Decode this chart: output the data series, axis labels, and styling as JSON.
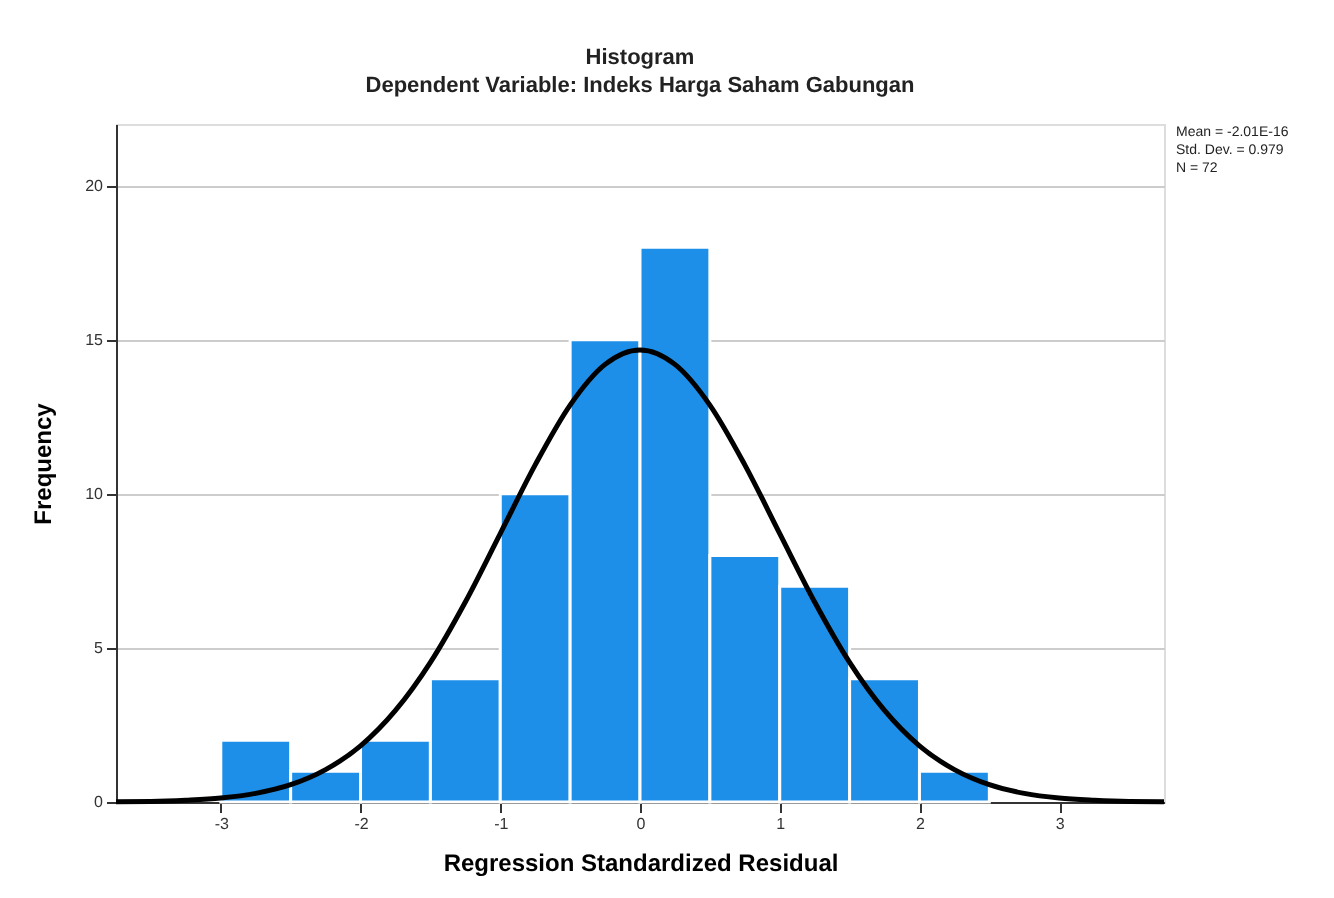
{
  "chart_data": {
    "type": "histogram",
    "title": "Histogram",
    "subtitle": "Dependent Variable: Indeks Harga Saham Gabungan",
    "xlabel": "Regression Standardized Residual",
    "ylabel": "Frequency",
    "bins": [
      -3,
      -2.5,
      -2,
      -1.5,
      -1,
      -0.5,
      0,
      0.5,
      1,
      1.5,
      2,
      2.5
    ],
    "values": [
      2,
      1,
      2,
      4,
      10,
      15,
      18,
      8,
      7,
      4,
      1
    ],
    "color": "#1e8fe8",
    "series": [
      {
        "type": "line",
        "color": "#000000",
        "x": [
          -3.75,
          -3.5,
          -3.25,
          -3,
          -2.75,
          -2.5,
          -2.25,
          -2,
          -1.75,
          -1.5,
          -1.25,
          -1,
          -0.75,
          -0.5,
          -0.25,
          0,
          0.25,
          0.5,
          0.75,
          1,
          1.25,
          1.5,
          1.75,
          2,
          2.25,
          2.5,
          2.75,
          3,
          3.25,
          3.5,
          3.75
        ],
        "values": [
          0.01,
          0.02,
          0.06,
          0.13,
          0.28,
          0.56,
          1.05,
          1.82,
          2.97,
          4.53,
          6.49,
          8.71,
          10.94,
          12.88,
          14.2,
          14.67,
          14.2,
          12.88,
          10.94,
          8.71,
          6.49,
          4.53,
          2.97,
          1.82,
          1.05,
          0.56,
          0.28,
          0.13,
          0.06,
          0.02,
          0.01
        ]
      }
    ],
    "xlim": [
      -3.75,
      3.75
    ],
    "ylim": [
      0,
      22
    ],
    "xticks": [
      -3,
      -2,
      -1,
      0,
      1,
      2,
      3
    ],
    "yticks": [
      0,
      5,
      10,
      15,
      20
    ],
    "grid": "y",
    "annotations": [
      "Mean = -2.01E-16",
      "Std. Dev. = 0.979",
      "N = 72"
    ]
  }
}
